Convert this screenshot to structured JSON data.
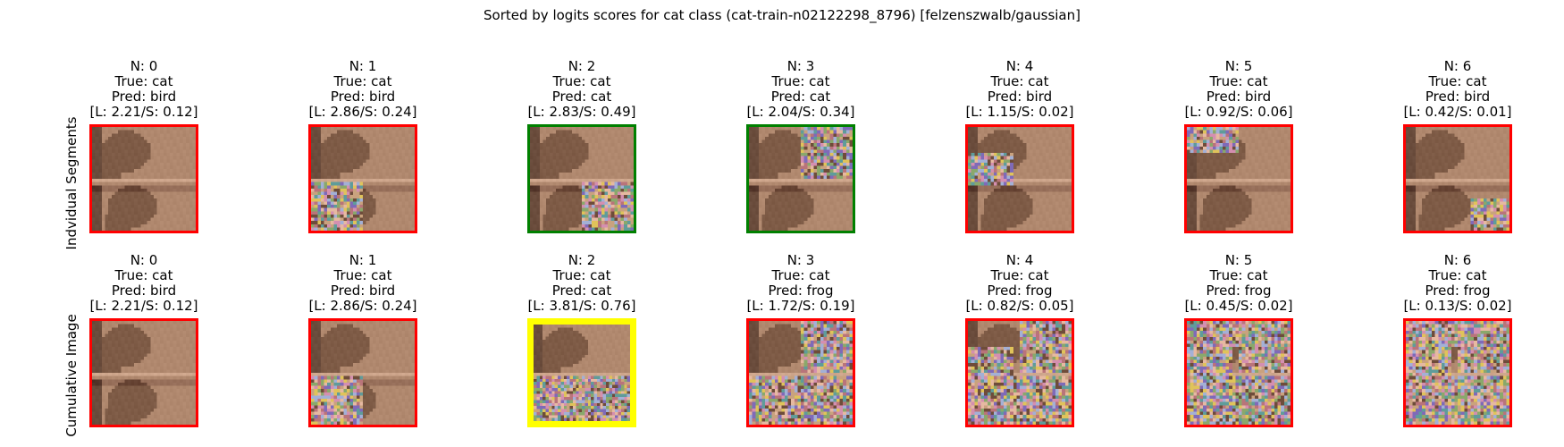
{
  "title": "Sorted by logits scores for cat class (cat-train-n02122298_8796) [felzenszwalb/gaussian]",
  "row_labels": [
    "Indvidual Segments",
    "Cumulative Image"
  ],
  "colors": {
    "correct": "#008000",
    "incorrect": "#ff0000",
    "best": "#ffff00",
    "noise_palette": [
      "#c9a27e",
      "#8aa86b",
      "#d48fb0",
      "#7f6ab8",
      "#e0c35a",
      "#5f9c9a",
      "#b9747a",
      "#a3b0d6",
      "#6e4c3a",
      "#e6b9a1"
    ]
  },
  "chart_data": [
    {
      "type": "image-grid",
      "row": "Indvidual Segments",
      "panels": [
        {
          "n_label": "N: 0",
          "true_label": "True: cat",
          "pred_label": "Pred: bird",
          "score_label": "[L: 2.21/S: 0.12]",
          "n": 0,
          "true": "cat",
          "pred": "bird",
          "L": 2.21,
          "S": 0.12,
          "border": "incorrect",
          "masked": []
        },
        {
          "n_label": "N: 1",
          "true_label": "True: cat",
          "pred_label": "Pred: bird",
          "score_label": "[L: 2.86/S: 0.24]",
          "n": 1,
          "true": "cat",
          "pred": "bird",
          "L": 2.86,
          "S": 0.24,
          "border": "incorrect",
          "masked": [
            "BL"
          ]
        },
        {
          "n_label": "N: 2",
          "true_label": "True: cat",
          "pred_label": "Pred: cat",
          "score_label": "[L: 2.83/S: 0.49]",
          "n": 2,
          "true": "cat",
          "pred": "cat",
          "L": 2.83,
          "S": 0.49,
          "border": "correct",
          "masked": [
            "BR"
          ]
        },
        {
          "n_label": "N: 3",
          "true_label": "True: cat",
          "pred_label": "Pred: cat",
          "score_label": "[L: 2.04/S: 0.34]",
          "n": 3,
          "true": "cat",
          "pred": "cat",
          "L": 2.04,
          "S": 0.34,
          "border": "correct",
          "masked": [
            "TR"
          ]
        },
        {
          "n_label": "N: 4",
          "true_label": "True: cat",
          "pred_label": "Pred: bird",
          "score_label": "[L: 1.15/S: 0.02]",
          "n": 4,
          "true": "cat",
          "pred": "bird",
          "L": 1.15,
          "S": 0.02,
          "border": "incorrect",
          "masked": [
            "ML"
          ]
        },
        {
          "n_label": "N: 5",
          "true_label": "True: cat",
          "pred_label": "Pred: bird",
          "score_label": "[L: 0.92/S: 0.06]",
          "n": 5,
          "true": "cat",
          "pred": "bird",
          "L": 0.92,
          "S": 0.06,
          "border": "incorrect",
          "masked": [
            "TL"
          ]
        },
        {
          "n_label": "N: 6",
          "true_label": "True: cat",
          "pred_label": "Pred: bird",
          "score_label": "[L: 0.42/S: 0.01]",
          "n": 6,
          "true": "cat",
          "pred": "bird",
          "L": 0.42,
          "S": 0.01,
          "border": "incorrect",
          "masked": [
            "BRS"
          ]
        }
      ]
    },
    {
      "type": "image-grid",
      "row": "Cumulative Image",
      "panels": [
        {
          "n_label": "N: 0",
          "true_label": "True: cat",
          "pred_label": "Pred: bird",
          "score_label": "[L: 2.21/S: 0.12]",
          "n": 0,
          "true": "cat",
          "pred": "bird",
          "L": 2.21,
          "S": 0.12,
          "border": "incorrect",
          "masked": []
        },
        {
          "n_label": "N: 1",
          "true_label": "True: cat",
          "pred_label": "Pred: bird",
          "score_label": "[L: 2.86/S: 0.24]",
          "n": 1,
          "true": "cat",
          "pred": "bird",
          "L": 2.86,
          "S": 0.24,
          "border": "incorrect",
          "masked": [
            "BL"
          ]
        },
        {
          "n_label": "N: 2",
          "true_label": "True: cat",
          "pred_label": "Pred: cat",
          "score_label": "[L: 3.81/S: 0.76]",
          "n": 2,
          "true": "cat",
          "pred": "cat",
          "L": 3.81,
          "S": 0.76,
          "border": "best",
          "masked": [
            "BL",
            "BR"
          ]
        },
        {
          "n_label": "N: 3",
          "true_label": "True: cat",
          "pred_label": "Pred: frog",
          "score_label": "[L: 1.72/S: 0.19]",
          "n": 3,
          "true": "cat",
          "pred": "frog",
          "L": 1.72,
          "S": 0.19,
          "border": "incorrect",
          "masked": [
            "BL",
            "BR",
            "TR"
          ]
        },
        {
          "n_label": "N: 4",
          "true_label": "True: cat",
          "pred_label": "Pred: frog",
          "score_label": "[L: 0.82/S: 0.05]",
          "n": 4,
          "true": "cat",
          "pred": "frog",
          "L": 0.82,
          "S": 0.05,
          "border": "incorrect",
          "masked": [
            "BL",
            "BR",
            "TR",
            "ML"
          ]
        },
        {
          "n_label": "N: 5",
          "true_label": "True: cat",
          "pred_label": "Pred: frog",
          "score_label": "[L: 0.45/S: 0.02]",
          "n": 5,
          "true": "cat",
          "pred": "frog",
          "L": 0.45,
          "S": 0.02,
          "border": "incorrect",
          "masked": [
            "BL",
            "BR",
            "TR",
            "ML",
            "TL"
          ]
        },
        {
          "n_label": "N: 6",
          "true_label": "True: cat",
          "pred_label": "Pred: frog",
          "score_label": "[L: 0.13/S: 0.02]",
          "n": 6,
          "true": "cat",
          "pred": "frog",
          "L": 0.13,
          "S": 0.02,
          "border": "incorrect",
          "masked": [
            "BL",
            "BR",
            "TR",
            "ML",
            "TL",
            "BRS"
          ]
        }
      ]
    }
  ]
}
